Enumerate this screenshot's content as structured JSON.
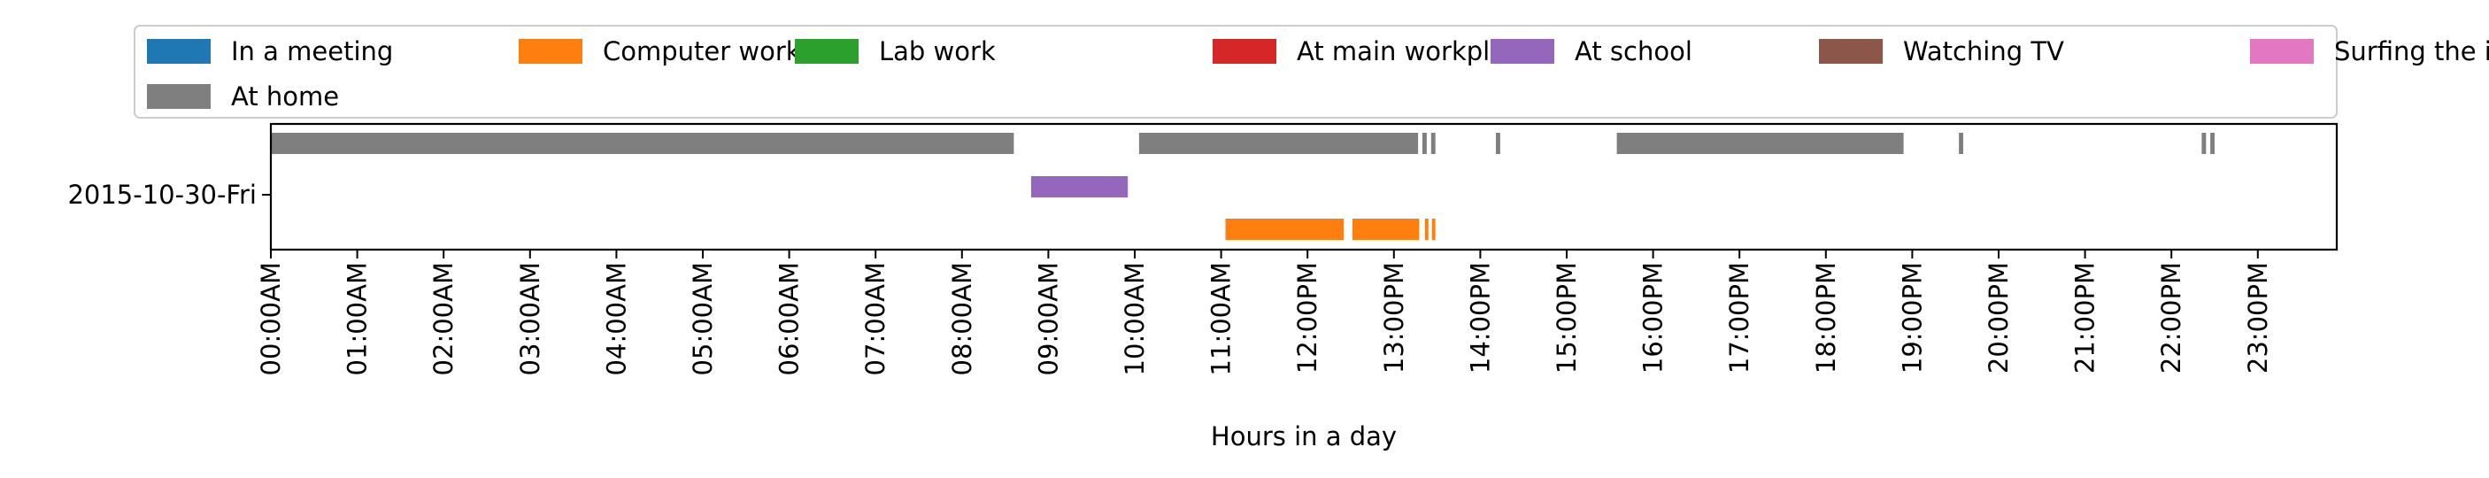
{
  "chart_data": {
    "type": "timeline",
    "xlabel": "Hours in a day",
    "ylabel": "",
    "xlim": [
      0,
      24
    ],
    "x_ticks": [
      "00:00AM",
      "01:00AM",
      "02:00AM",
      "03:00AM",
      "04:00AM",
      "05:00AM",
      "06:00AM",
      "07:00AM",
      "08:00AM",
      "09:00AM",
      "10:00AM",
      "11:00AM",
      "12:00PM",
      "13:00PM",
      "14:00PM",
      "15:00PM",
      "16:00PM",
      "17:00PM",
      "18:00PM",
      "19:00PM",
      "20:00PM",
      "21:00PM",
      "22:00PM",
      "23:00PM"
    ],
    "y_categories": [
      "2015-10-30-Fri"
    ],
    "grid": false,
    "legend_position": "top",
    "series": [
      {
        "name": "In a meeting",
        "color": "#1f77b4",
        "intervals": []
      },
      {
        "name": "Computer work",
        "color": "#ff7f0e",
        "intervals": [
          [
            11.05,
            12.42
          ],
          [
            12.52,
            13.29
          ],
          [
            13.36,
            13.4
          ],
          [
            13.44,
            13.48
          ]
        ]
      },
      {
        "name": "Lab work",
        "color": "#2ca02c",
        "intervals": []
      },
      {
        "name": "At main workplace",
        "color": "#d62728",
        "intervals": []
      },
      {
        "name": "At school",
        "color": "#9467bd",
        "intervals": [
          [
            8.8,
            9.92
          ]
        ]
      },
      {
        "name": "Watching TV",
        "color": "#8c564b",
        "intervals": []
      },
      {
        "name": "Surfing the internet",
        "color": "#e377c2",
        "intervals": []
      },
      {
        "name": "At home",
        "color": "#7f7f7f",
        "intervals": [
          [
            0.0,
            8.6
          ],
          [
            10.05,
            13.28
          ],
          [
            13.33,
            13.38
          ],
          [
            13.43,
            13.48
          ],
          [
            14.18,
            14.23
          ],
          [
            15.58,
            18.9
          ],
          [
            19.54,
            19.59
          ],
          [
            22.35,
            22.4
          ],
          [
            22.45,
            22.5
          ]
        ]
      }
    ]
  }
}
